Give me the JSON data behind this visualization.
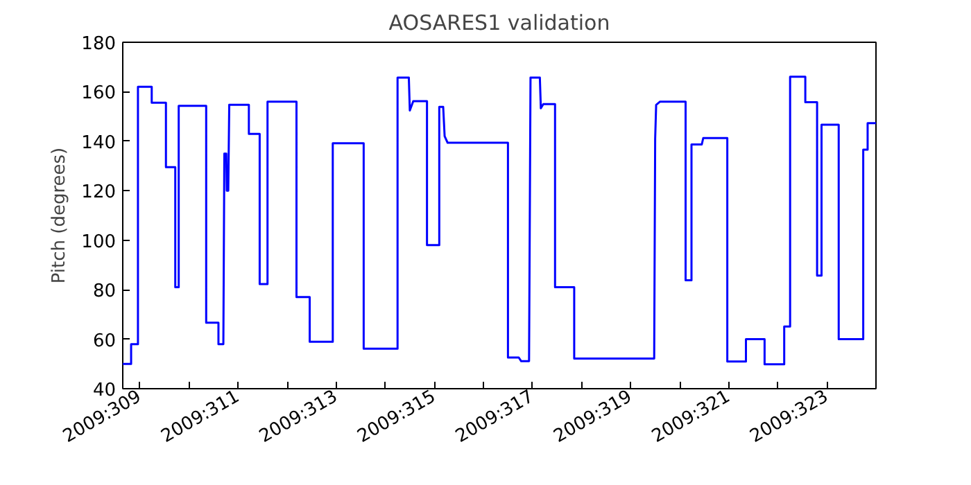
{
  "chart_data": {
    "type": "line",
    "title": "AOSARES1 validation",
    "ylabel": "Pitch (degrees)",
    "xlim": [
      "2009-11-04T15:36",
      "2009-11-20T00:00"
    ],
    "ylim": [
      40,
      180
    ],
    "xticks": [
      {
        "value": "2009-11-05",
        "label": "2009:309"
      },
      {
        "value": "2009-11-06",
        "label": null
      },
      {
        "value": "2009-11-07",
        "label": "2009:311"
      },
      {
        "value": "2009-11-08",
        "label": null
      },
      {
        "value": "2009-11-09",
        "label": "2009:313"
      },
      {
        "value": "2009-11-10",
        "label": null
      },
      {
        "value": "2009-11-11",
        "label": "2009:315"
      },
      {
        "value": "2009-11-12",
        "label": null
      },
      {
        "value": "2009-11-13",
        "label": "2009:317"
      },
      {
        "value": "2009-11-14",
        "label": null
      },
      {
        "value": "2009-11-15",
        "label": "2009:319"
      },
      {
        "value": "2009-11-16",
        "label": null
      },
      {
        "value": "2009-11-17",
        "label": "2009:321"
      },
      {
        "value": "2009-11-18",
        "label": null
      },
      {
        "value": "2009-11-19",
        "label": "2009:323"
      }
    ],
    "yticks": [
      40,
      60,
      80,
      100,
      120,
      140,
      160,
      180
    ],
    "grid": false,
    "marker": "none",
    "line_style": "solid",
    "series": [
      {
        "color": "#0000ff",
        "x": [
          "2009-11-04T15:36",
          "2009-11-04T19:41",
          "2009-11-04T19:41",
          "2009-11-04T23:02",
          "2009-11-04T23:02",
          "2009-11-05T05:46",
          "2009-11-05T05:46",
          "2009-11-05T12:43",
          "2009-11-05T12:43",
          "2009-11-05T17:17",
          "2009-11-05T17:17",
          "2009-11-05T18:58",
          "2009-11-05T18:58",
          "2009-11-06T08:24",
          "2009-11-06T08:24",
          "2009-11-06T14:24",
          "2009-11-06T14:24",
          "2009-11-06T16:48",
          "2009-11-06T17:17",
          "2009-11-06T18:14",
          "2009-11-06T18:29",
          "2009-11-06T19:12",
          "2009-11-06T19:41",
          "2009-11-07T05:17",
          "2009-11-07T05:17",
          "2009-11-07T10:34",
          "2009-11-07T10:34",
          "2009-11-07T14:24",
          "2009-11-07T14:24",
          "2009-11-08T04:34",
          "2009-11-08T04:34",
          "2009-11-08T11:02",
          "2009-11-08T11:02",
          "2009-11-08T22:19",
          "2009-11-08T22:19",
          "2009-11-09T13:26",
          "2009-11-09T13:26",
          "2009-11-10T06:00",
          "2009-11-10T06:00",
          "2009-11-10T11:31",
          "2009-11-10T12:00",
          "2009-11-10T13:41",
          "2009-11-10T20:24",
          "2009-11-10T20:24",
          "2009-11-11T02:24",
          "2009-11-11T02:24",
          "2009-11-11T04:19",
          "2009-11-11T05:02",
          "2009-11-11T06:29",
          "2009-11-12T12:00",
          "2009-11-12T12:00",
          "2009-11-12T17:17",
          "2009-11-12T18:29",
          "2009-11-12T22:19",
          "2009-11-12T23:02",
          "2009-11-13T03:36",
          "2009-11-13T04:05",
          "2009-11-13T05:17",
          "2009-11-13T11:02",
          "2009-11-13T11:02",
          "2009-11-13T20:24",
          "2009-11-13T20:24",
          "2009-11-15T11:31",
          "2009-11-15T12:00",
          "2009-11-15T12:29",
          "2009-11-15T14:24",
          "2009-11-16T02:53",
          "2009-11-16T02:53",
          "2009-11-16T05:46",
          "2009-11-16T05:46",
          "2009-11-16T10:48",
          "2009-11-16T11:31",
          "2009-11-16T23:17",
          "2009-11-16T23:17",
          "2009-11-17T08:24",
          "2009-11-17T08:24",
          "2009-11-17T17:31",
          "2009-11-17T17:31",
          "2009-11-18T03:07",
          "2009-11-18T03:07",
          "2009-11-18T06:00",
          "2009-11-18T06:00",
          "2009-11-18T13:26",
          "2009-11-18T13:26",
          "2009-11-18T19:12",
          "2009-11-18T19:12",
          "2009-11-18T21:22",
          "2009-11-18T21:22",
          "2009-11-19T05:46",
          "2009-11-19T05:46",
          "2009-11-19T17:46",
          "2009-11-19T17:46",
          "2009-11-19T19:55",
          "2009-11-19T19:55",
          "2009-11-20T00:00"
        ],
        "values": [
          50,
          50,
          58,
          58,
          162,
          162,
          155.6,
          155.6,
          129.5,
          129.5,
          81,
          81,
          154.3,
          154.3,
          66.7,
          66.7,
          58,
          58,
          135,
          135,
          120,
          120,
          154.7,
          154.7,
          143,
          143,
          82.3,
          82.3,
          156,
          156,
          77,
          77,
          59,
          59,
          139.2,
          139.2,
          56.2,
          56.2,
          165.7,
          165.7,
          152.4,
          156.2,
          156.2,
          98,
          98,
          153.9,
          153.9,
          142,
          139.4,
          139.4,
          52.6,
          52.6,
          51.1,
          51.1,
          165.7,
          165.7,
          153.3,
          155,
          155,
          81,
          81,
          52.2,
          52.2,
          141,
          154.7,
          156,
          156,
          83.8,
          83.8,
          138.7,
          138.7,
          141.3,
          141.3,
          51,
          51,
          60,
          60,
          49.9,
          49.9,
          65.1,
          65.1,
          166.1,
          166.1,
          155.8,
          155.8,
          85.7,
          85.7,
          146.7,
          146.7,
          60,
          60,
          136.6,
          136.6,
          147.3,
          147.3
        ]
      }
    ]
  }
}
